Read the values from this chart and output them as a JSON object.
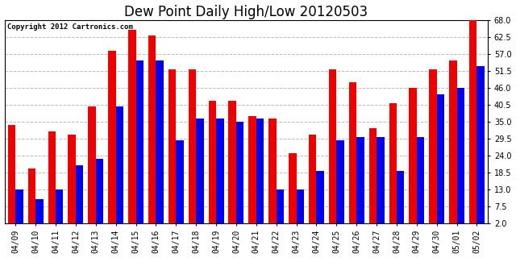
{
  "title": "Dew Point Daily High/Low 20120503",
  "copyright": "Copyright 2012 Cartronics.com",
  "dates": [
    "04/09",
    "04/10",
    "04/11",
    "04/12",
    "04/13",
    "04/14",
    "04/15",
    "04/16",
    "04/17",
    "04/18",
    "04/19",
    "04/20",
    "04/21",
    "04/22",
    "04/23",
    "04/24",
    "04/25",
    "04/26",
    "04/27",
    "04/28",
    "04/29",
    "04/30",
    "05/01",
    "05/02"
  ],
  "high": [
    34,
    20,
    32,
    31,
    40,
    58,
    65,
    63,
    52,
    52,
    42,
    42,
    37,
    36,
    25,
    31,
    52,
    48,
    33,
    41,
    46,
    52,
    55,
    68
  ],
  "low": [
    13,
    10,
    13,
    21,
    23,
    40,
    55,
    55,
    29,
    36,
    36,
    35,
    36,
    13,
    13,
    19,
    29,
    30,
    30,
    19,
    30,
    44,
    46,
    53
  ],
  "bar_width": 0.38,
  "high_color": "#ee0000",
  "low_color": "#0000ee",
  "bg_color": "#ffffff",
  "plot_bg_color": "#ffffff",
  "grid_color": "#bbbbbb",
  "ylim": [
    2.0,
    68.0
  ],
  "yticks": [
    2.0,
    7.5,
    13.0,
    18.5,
    24.0,
    29.5,
    35.0,
    40.5,
    46.0,
    51.5,
    57.0,
    62.5,
    68.0
  ],
  "title_fontsize": 12,
  "tick_fontsize": 7,
  "copyright_fontsize": 6.5
}
